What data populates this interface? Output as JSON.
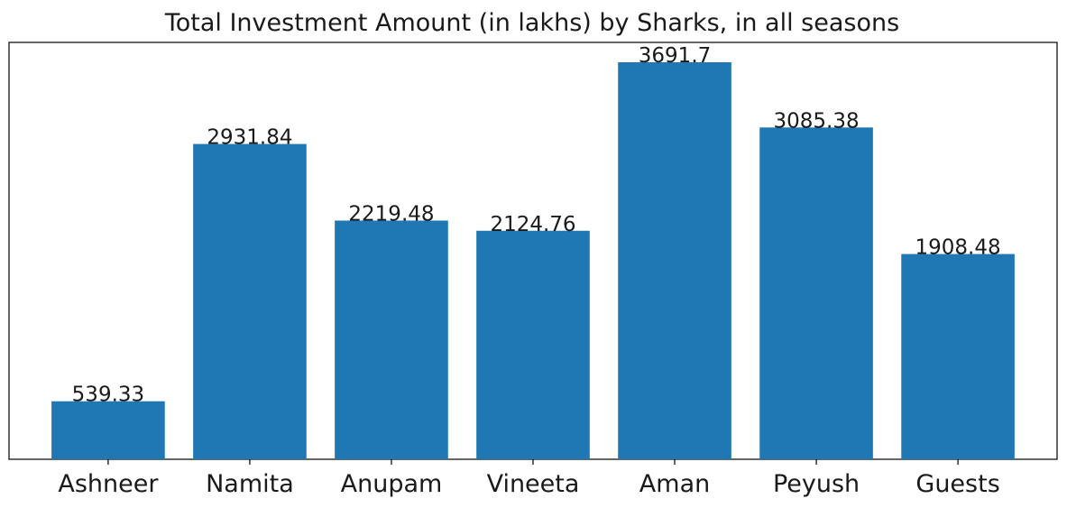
{
  "chart_data": {
    "type": "bar",
    "title": "Total Investment Amount (in lakhs) by Sharks, in all seasons",
    "xlabel": "",
    "ylabel": "",
    "categories": [
      "Ashneer",
      "Namita",
      "Anupam",
      "Vineeta",
      "Aman",
      "Peyush",
      "Guests"
    ],
    "values": [
      539.33,
      2931.84,
      2219.48,
      2124.76,
      3691.7,
      3085.38,
      1908.48
    ],
    "data_labels": [
      "539.33",
      "2931.84",
      "2219.48",
      "2124.76",
      "3691.7",
      "3085.38",
      "1908.48"
    ],
    "ylim": [
      0,
      3876.3
    ],
    "y_ticks_visible": false,
    "grid": false,
    "legend": "none",
    "bar_color": "#1f77b4"
  }
}
